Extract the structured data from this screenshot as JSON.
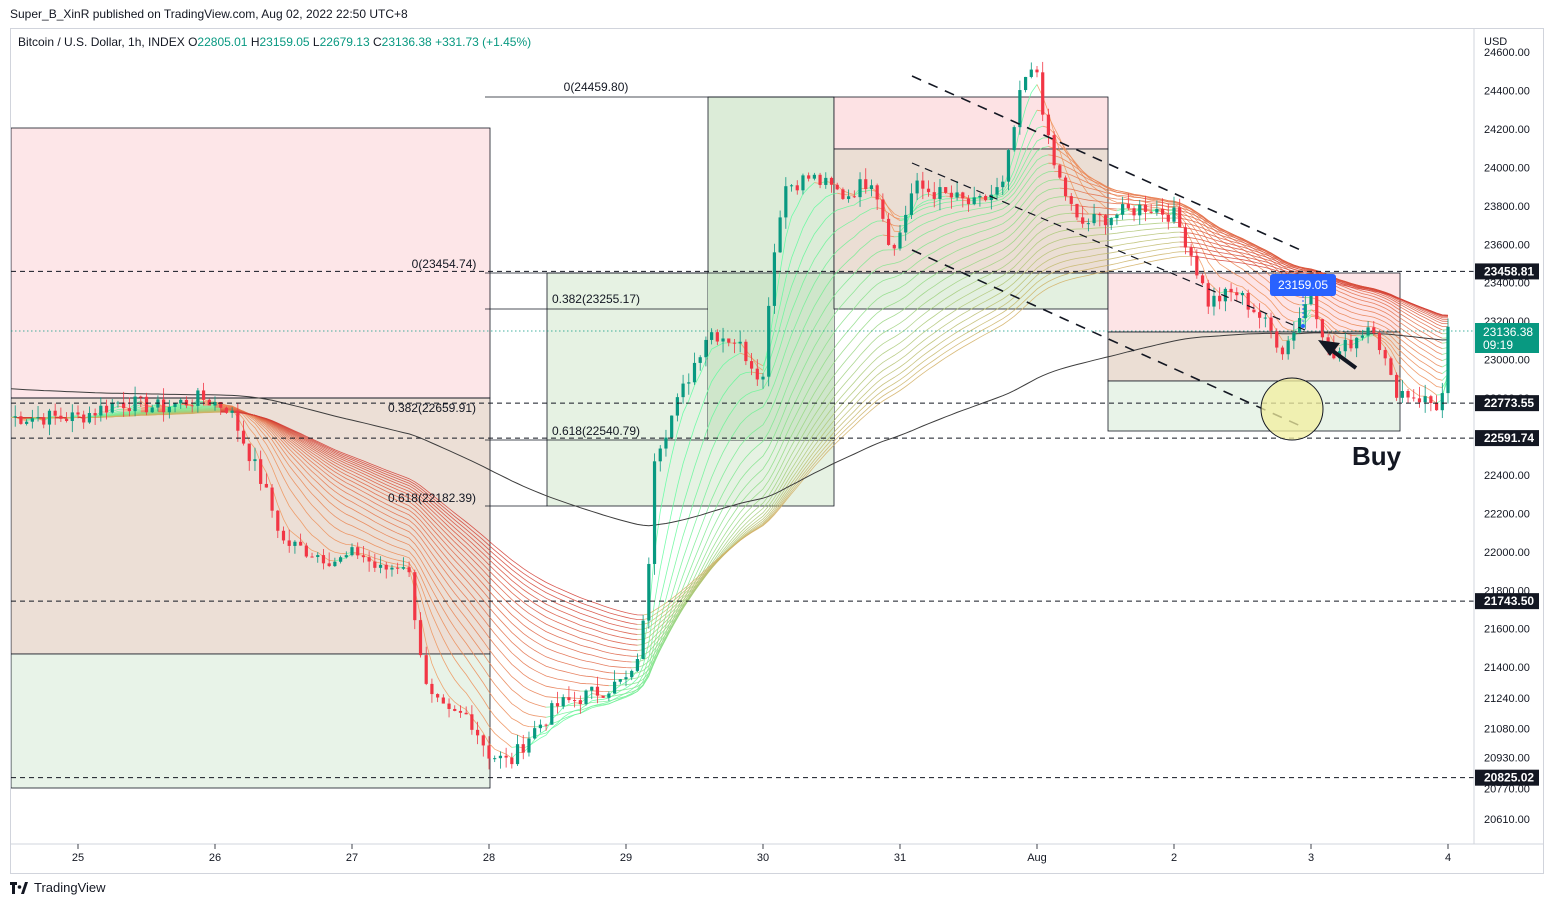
{
  "header": {
    "publisher_line": "Super_B_XinR published on TradingView.com, Aug 02, 2022 22:50 UTC+8",
    "symbol": "Bitcoin / U.S. Dollar, 1h, INDEX",
    "open_label": "O",
    "open": "22805.01",
    "high_label": "H",
    "high": "23159.05",
    "low_label": "L",
    "low": "22679.13",
    "close_label": "C",
    "close": "23136.38",
    "change": "+331.73 (+1.45%)"
  },
  "footer": {
    "brand": "TradingView"
  },
  "colors": {
    "up": "#089981",
    "down": "#f23645",
    "current": "#089981",
    "pink_zone": "#fce4e6",
    "green_zone": "#e6f2e6",
    "tan_zone": "#eadfd7",
    "blue_badge": "#2962ff"
  },
  "chart_data": {
    "type": "line",
    "currency": "USD",
    "ylim": [
      20480,
      24720
    ],
    "x_ticks": [
      "25",
      "26",
      "27",
      "28",
      "29",
      "30",
      "31",
      "Aug",
      "2",
      "3",
      "4"
    ],
    "y_ticks": [
      "24600.00",
      "24400.00",
      "24200.00",
      "24000.00",
      "23800.00",
      "23600.00",
      "23400.00",
      "23200.00",
      "23000.00",
      "22800.00",
      "22600.00",
      "22400.00",
      "22200.00",
      "22000.00",
      "21800.00",
      "21600.00",
      "21400.00",
      "21240.00",
      "21080.00",
      "20930.00",
      "20770.00",
      "20610.00"
    ],
    "price_labels": [
      {
        "value": 23458.81,
        "text": "23458.81"
      },
      {
        "value": 22773.55,
        "text": "22773.55"
      },
      {
        "value": 22591.74,
        "text": "22591.74"
      },
      {
        "value": 21743.5,
        "text": "21743.50"
      },
      {
        "value": 20825.02,
        "text": "20825.02"
      }
    ],
    "current_price": {
      "value": 23136.38,
      "text": "23136.38",
      "countdown": "09:19"
    },
    "high_badge": {
      "value": 23159.05,
      "text": "23159.05"
    },
    "fib_labels": [
      {
        "text": "0(24459.80)"
      },
      {
        "text": "0(23454.74)"
      },
      {
        "text": "0.382(23255.17)"
      },
      {
        "text": "0.382(22659.91)"
      },
      {
        "text": "0.618(22540.79)"
      },
      {
        "text": "0.618(22182.39)"
      }
    ],
    "annotation": "Buy",
    "price_series": [
      {
        "t": 0.0,
        "v": 22700
      },
      {
        "t": 0.3,
        "v": 22780
      },
      {
        "t": 0.6,
        "v": 22750
      },
      {
        "t": 0.9,
        "v": 22800
      },
      {
        "t": 1.1,
        "v": 22750
      },
      {
        "t": 1.35,
        "v": 22350
      },
      {
        "t": 1.5,
        "v": 22050
      },
      {
        "t": 1.7,
        "v": 22000
      },
      {
        "t": 1.9,
        "v": 21950
      },
      {
        "t": 2.05,
        "v": 22000
      },
      {
        "t": 2.2,
        "v": 21900
      },
      {
        "t": 2.4,
        "v": 21950
      },
      {
        "t": 2.55,
        "v": 21250
      },
      {
        "t": 2.7,
        "v": 21150
      },
      {
        "t": 2.85,
        "v": 21150
      },
      {
        "t": 3.0,
        "v": 20950
      },
      {
        "t": 3.15,
        "v": 20900
      },
      {
        "t": 3.3,
        "v": 21050
      },
      {
        "t": 3.5,
        "v": 21200
      },
      {
        "t": 3.7,
        "v": 21250
      },
      {
        "t": 3.9,
        "v": 21300
      },
      {
        "t": 4.05,
        "v": 21350
      },
      {
        "t": 4.15,
        "v": 21700
      },
      {
        "t": 4.2,
        "v": 22500
      },
      {
        "t": 4.3,
        "v": 22650
      },
      {
        "t": 4.45,
        "v": 22900
      },
      {
        "t": 4.6,
        "v": 23150
      },
      {
        "t": 4.8,
        "v": 23100
      },
      {
        "t": 5.0,
        "v": 22900
      },
      {
        "t": 5.05,
        "v": 23400
      },
      {
        "t": 5.15,
        "v": 23900
      },
      {
        "t": 5.35,
        "v": 23950
      },
      {
        "t": 5.6,
        "v": 23850
      },
      {
        "t": 5.8,
        "v": 23950
      },
      {
        "t": 5.95,
        "v": 23550
      },
      {
        "t": 6.1,
        "v": 23900
      },
      {
        "t": 6.35,
        "v": 23850
      },
      {
        "t": 6.55,
        "v": 23800
      },
      {
        "t": 6.75,
        "v": 23900
      },
      {
        "t": 6.9,
        "v": 24450
      },
      {
        "t": 7.0,
        "v": 24500
      },
      {
        "t": 7.1,
        "v": 24050
      },
      {
        "t": 7.3,
        "v": 23700
      },
      {
        "t": 7.55,
        "v": 23750
      },
      {
        "t": 7.8,
        "v": 23800
      },
      {
        "t": 8.0,
        "v": 23750
      },
      {
        "t": 8.1,
        "v": 23600
      },
      {
        "t": 8.25,
        "v": 23300
      },
      {
        "t": 8.45,
        "v": 23350
      },
      {
        "t": 8.6,
        "v": 23250
      },
      {
        "t": 8.8,
        "v": 23050
      },
      {
        "t": 9.0,
        "v": 23350
      },
      {
        "t": 9.15,
        "v": 23000
      },
      {
        "t": 9.3,
        "v": 23100
      },
      {
        "t": 9.45,
        "v": 23200
      },
      {
        "t": 9.6,
        "v": 22850
      },
      {
        "t": 9.8,
        "v": 22800
      },
      {
        "t": 9.95,
        "v": 22750
      },
      {
        "t": 10.0,
        "v": 23136
      }
    ]
  }
}
